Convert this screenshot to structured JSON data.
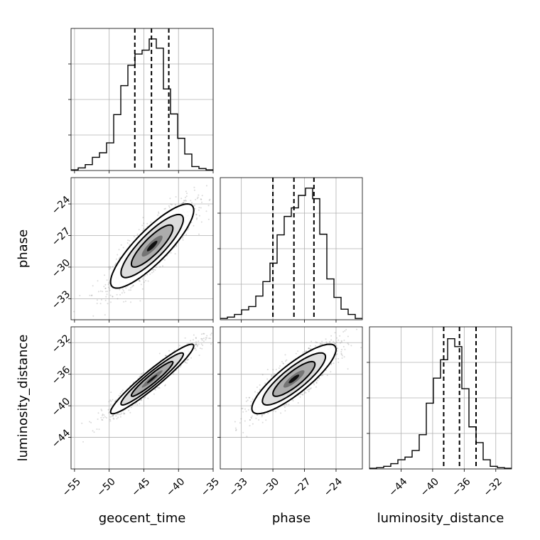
{
  "chart_data": {
    "type": "corner",
    "parameters": [
      "geocent_time",
      "phase",
      "luminosity_distance"
    ],
    "ranges": {
      "geocent_time": [
        -55.5,
        -35
      ],
      "phase": [
        -35,
        -21.5
      ],
      "luminosity_distance": [
        -48,
        -30
      ]
    },
    "ticks": {
      "geocent_time": [
        -55,
        -50,
        -45,
        -40,
        -35
      ],
      "phase": [
        -33,
        -30,
        -27,
        -24
      ],
      "luminosity_distance": [
        -44,
        -40,
        -36,
        -32
      ]
    },
    "tick_labels": {
      "geocent_time": [
        "−55",
        "−50",
        "−45",
        "−40",
        "−35"
      ],
      "phase": [
        "−33",
        "−30",
        "−27",
        "−24"
      ],
      "luminosity_distance": [
        "−44",
        "−40",
        "−36",
        "−32"
      ]
    },
    "axis_labels": {
      "x": [
        "geocent_time",
        "phase",
        "luminosity_distance"
      ],
      "y": [
        "phase",
        "luminosity_distance"
      ]
    },
    "histograms": [
      {
        "name": "geocent_time",
        "bin_edges": [
          -55.5,
          -54.475,
          -53.45,
          -52.425,
          -51.4,
          -50.375,
          -49.35,
          -48.325,
          -47.3,
          -46.275,
          -45.25,
          -44.225,
          -43.2,
          -42.175,
          -41.15,
          -40.125,
          -39.1,
          -38.075,
          -37.05,
          -36.025,
          -35
        ],
        "counts": [
          0.005,
          0.02,
          0.045,
          0.1,
          0.135,
          0.21,
          0.425,
          0.645,
          0.8,
          0.885,
          0.915,
          1.0,
          0.93,
          0.62,
          0.43,
          0.245,
          0.125,
          0.03,
          0.015,
          0.005
        ],
        "quantiles": [
          -46.3,
          -43.9,
          -41.4
        ]
      },
      {
        "name": "phase",
        "bin_edges": [
          -35,
          -34.325,
          -33.65,
          -32.975,
          -32.3,
          -31.625,
          -30.95,
          -30.275,
          -29.6,
          -28.925,
          -28.25,
          -27.575,
          -26.9,
          -26.225,
          -25.55,
          -24.875,
          -24.2,
          -23.525,
          -22.85,
          -22.175,
          -21.5
        ],
        "counts": [
          0.01,
          0.02,
          0.04,
          0.075,
          0.1,
          0.18,
          0.29,
          0.43,
          0.645,
          0.785,
          0.85,
          0.945,
          1.0,
          0.92,
          0.65,
          0.31,
          0.17,
          0.08,
          0.04,
          0.01
        ],
        "quantiles": [
          -30.0,
          -28.0,
          -26.1
        ]
      },
      {
        "name": "luminosity_distance",
        "bin_edges": [
          -48,
          -47.1,
          -46.2,
          -45.3,
          -44.4,
          -43.5,
          -42.6,
          -41.7,
          -40.8,
          -39.9,
          -39,
          -38.1,
          -37.2,
          -36.3,
          -35.4,
          -34.5,
          -33.6,
          -32.7,
          -31.8,
          -30.9,
          -30
        ],
        "counts": [
          0.005,
          0.01,
          0.02,
          0.04,
          0.07,
          0.09,
          0.14,
          0.26,
          0.5,
          0.69,
          0.83,
          0.99,
          0.93,
          0.61,
          0.32,
          0.2,
          0.07,
          0.02,
          0.01,
          0.005
        ],
        "quantiles": [
          -38.6,
          -36.6,
          -34.5
        ]
      }
    ],
    "pairs": [
      {
        "x": "geocent_time",
        "y": "phase",
        "mean": [
          -43.8,
          -28.0
        ],
        "sd": [
          3.0,
          2.0
        ],
        "corr": 0.85
      },
      {
        "x": "geocent_time",
        "y": "luminosity_distance",
        "mean": [
          -43.8,
          -36.6
        ],
        "sd": [
          3.0,
          2.2
        ],
        "corr": 0.95
      },
      {
        "x": "phase",
        "y": "luminosity_distance",
        "mean": [
          -28.0,
          -36.6
        ],
        "sd": [
          2.0,
          2.2
        ],
        "corr": 0.85
      }
    ],
    "contour_levels_sigma": [
      0.5,
      1.0,
      1.5,
      2.0
    ],
    "grid": true
  }
}
